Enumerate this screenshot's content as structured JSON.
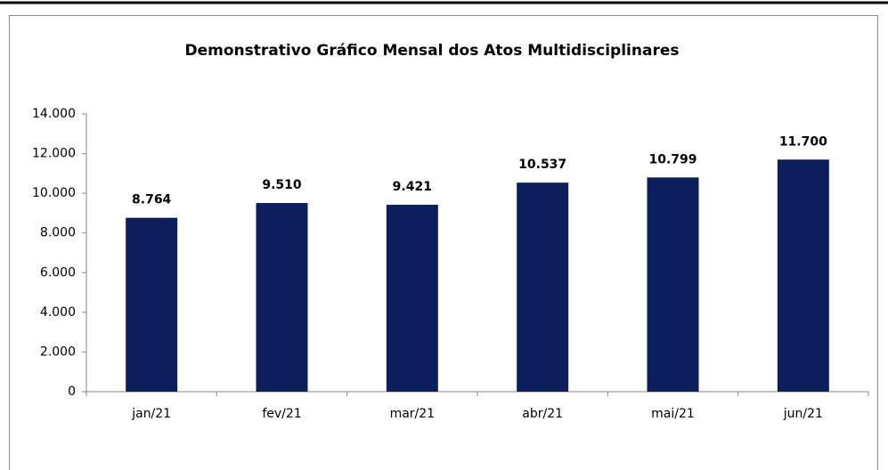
{
  "chart_data": {
    "type": "bar",
    "title": "Demonstrativo Gráfico Mensal dos Atos Multidisciplinares",
    "categories": [
      "jan/21",
      "fev/21",
      "mar/21",
      "abr/21",
      "mai/21",
      "jun/21"
    ],
    "values": [
      8764,
      9510,
      9421,
      10537,
      10799,
      11700
    ],
    "value_labels": [
      "8.764",
      "9.510",
      "9.421",
      "10.537",
      "10.799",
      "11.700"
    ],
    "color": "#0c1f5c",
    "ylim": [
      0,
      14000
    ],
    "yticks": [
      0,
      {
        "value": 2000,
        "label": "2.000"
      },
      {
        "value": 4000,
        "label": "4.000"
      },
      {
        "value": 6000,
        "label": "6.000"
      },
      {
        "value": 8000,
        "label": "8.000"
      },
      {
        "value": 10000,
        "label": "10.000"
      },
      {
        "value": 12000,
        "label": "12.000"
      },
      {
        "value": 14000,
        "label": "14.000"
      }
    ],
    "grid": false
  }
}
